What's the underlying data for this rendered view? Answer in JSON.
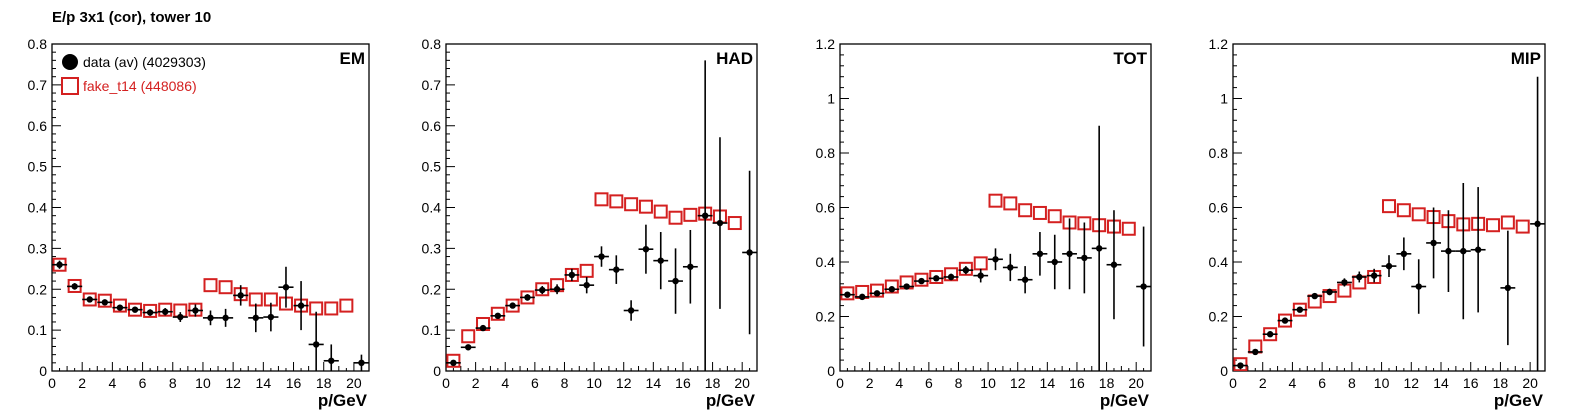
{
  "page": {
    "title": "E/p 3x1 (cor), tower 10"
  },
  "legend": {
    "entries": [
      {
        "label": "data (av) (4029303)",
        "color": "#000000",
        "marker": "filled-circle"
      },
      {
        "label": "fake_t14 (448086)",
        "color": "#d42020",
        "marker": "open-square"
      }
    ],
    "placement": "top-left of first panel"
  },
  "colors": {
    "data": "#000000",
    "fake": "#d42020",
    "axis": "#000000"
  },
  "chart_data": [
    {
      "type": "scatter",
      "panel_label": "EM",
      "xlabel": "p/GeV",
      "ylabel": "",
      "xlim": [
        0,
        21
      ],
      "ylim": [
        0,
        0.8
      ],
      "xticks": [
        0,
        2,
        4,
        6,
        8,
        10,
        12,
        14,
        16,
        18,
        20
      ],
      "yticks": [
        0,
        0.1,
        0.2,
        0.3,
        0.4,
        0.5,
        0.6,
        0.7,
        0.8
      ],
      "ytick_labels": [
        "0",
        "0.1",
        "0.2",
        "0.3",
        "0.4",
        "0.5",
        "0.6",
        "0.7",
        "0.8"
      ],
      "grid": false,
      "series": [
        {
          "name": "data (av) (4029303)",
          "marker": "filled-circle",
          "points": [
            [
              0.5,
              0.26,
              0.01
            ],
            [
              1.5,
              0.207,
              0.008
            ],
            [
              2.5,
              0.175,
              0.007
            ],
            [
              3.5,
              0.168,
              0.007
            ],
            [
              4.5,
              0.155,
              0.007
            ],
            [
              5.5,
              0.15,
              0.007
            ],
            [
              6.5,
              0.143,
              0.008
            ],
            [
              7.5,
              0.145,
              0.009
            ],
            [
              8.5,
              0.132,
              0.012
            ],
            [
              9.5,
              0.148,
              0.015
            ],
            [
              10.5,
              0.13,
              0.018
            ],
            [
              11.5,
              0.13,
              0.022
            ],
            [
              12.5,
              0.185,
              0.025
            ],
            [
              13.5,
              0.13,
              0.035
            ],
            [
              14.5,
              0.132,
              0.035
            ],
            [
              15.5,
              0.205,
              0.05
            ],
            [
              16.5,
              0.16,
              0.06
            ],
            [
              17.5,
              0.065,
              0.08
            ],
            [
              18.5,
              0.025,
              0.04
            ],
            [
              20.5,
              0.02,
              0.02
            ]
          ]
        },
        {
          "name": "fake_t14 (448086)",
          "marker": "open-square",
          "points": [
            [
              0.5,
              0.26
            ],
            [
              1.5,
              0.208
            ],
            [
              2.5,
              0.175
            ],
            [
              3.5,
              0.172
            ],
            [
              4.5,
              0.16
            ],
            [
              5.5,
              0.15
            ],
            [
              6.5,
              0.147
            ],
            [
              7.5,
              0.15
            ],
            [
              8.5,
              0.148
            ],
            [
              9.5,
              0.15
            ],
            [
              10.5,
              0.21
            ],
            [
              11.5,
              0.205
            ],
            [
              12.5,
              0.188
            ],
            [
              13.5,
              0.175
            ],
            [
              14.5,
              0.175
            ],
            [
              15.5,
              0.165
            ],
            [
              16.5,
              0.16
            ],
            [
              17.5,
              0.153
            ],
            [
              18.5,
              0.153
            ],
            [
              19.5,
              0.16
            ]
          ]
        }
      ]
    },
    {
      "type": "scatter",
      "panel_label": "HAD",
      "xlabel": "p/GeV",
      "ylabel": "",
      "xlim": [
        0,
        21
      ],
      "ylim": [
        0,
        0.8
      ],
      "xticks": [
        0,
        2,
        4,
        6,
        8,
        10,
        12,
        14,
        16,
        18,
        20
      ],
      "yticks": [
        0,
        0.1,
        0.2,
        0.3,
        0.4,
        0.5,
        0.6,
        0.7,
        0.8
      ],
      "ytick_labels": [
        "0",
        "0.1",
        "0.2",
        "0.3",
        "0.4",
        "0.5",
        "0.6",
        "0.7",
        "0.8"
      ],
      "grid": false,
      "series": [
        {
          "name": "data (av) (4029303)",
          "marker": "filled-circle",
          "points": [
            [
              0.5,
              0.02,
              0.005
            ],
            [
              1.5,
              0.058,
              0.005
            ],
            [
              2.5,
              0.105,
              0.006
            ],
            [
              3.5,
              0.135,
              0.007
            ],
            [
              4.5,
              0.16,
              0.007
            ],
            [
              5.5,
              0.18,
              0.008
            ],
            [
              6.5,
              0.198,
              0.01
            ],
            [
              7.5,
              0.2,
              0.012
            ],
            [
              8.5,
              0.235,
              0.015
            ],
            [
              9.5,
              0.21,
              0.02
            ],
            [
              10.5,
              0.28,
              0.025
            ],
            [
              11.5,
              0.248,
              0.035
            ],
            [
              12.5,
              0.148,
              0.025
            ],
            [
              13.5,
              0.298,
              0.06
            ],
            [
              14.5,
              0.27,
              0.07
            ],
            [
              15.5,
              0.22,
              0.08
            ],
            [
              16.5,
              0.255,
              0.09
            ],
            [
              17.5,
              0.38,
              0.38
            ],
            [
              18.5,
              0.362,
              0.21
            ],
            [
              20.5,
              0.29,
              0.2
            ]
          ]
        },
        {
          "name": "fake_t14 (448086)",
          "marker": "open-square",
          "points": [
            [
              0.5,
              0.025
            ],
            [
              1.5,
              0.085
            ],
            [
              2.5,
              0.115
            ],
            [
              3.5,
              0.14
            ],
            [
              4.5,
              0.16
            ],
            [
              5.5,
              0.18
            ],
            [
              6.5,
              0.2
            ],
            [
              7.5,
              0.21
            ],
            [
              8.5,
              0.235
            ],
            [
              9.5,
              0.245
            ],
            [
              10.5,
              0.42
            ],
            [
              11.5,
              0.415
            ],
            [
              12.5,
              0.408
            ],
            [
              13.5,
              0.402
            ],
            [
              14.5,
              0.39
            ],
            [
              15.5,
              0.375
            ],
            [
              16.5,
              0.382
            ],
            [
              17.5,
              0.385
            ],
            [
              18.5,
              0.378
            ],
            [
              19.5,
              0.362
            ]
          ]
        }
      ]
    },
    {
      "type": "scatter",
      "panel_label": "TOT",
      "xlabel": "p/GeV",
      "ylabel": "",
      "xlim": [
        0,
        21
      ],
      "ylim": [
        0,
        1.2
      ],
      "xticks": [
        0,
        2,
        4,
        6,
        8,
        10,
        12,
        14,
        16,
        18,
        20
      ],
      "yticks": [
        0,
        0.2,
        0.4,
        0.6,
        0.8,
        1.0,
        1.2
      ],
      "ytick_labels": [
        "0",
        "0.2",
        "0.4",
        "0.6",
        "0.8",
        "1",
        "1.2"
      ],
      "grid": false,
      "series": [
        {
          "name": "data (av) (4029303)",
          "marker": "filled-circle",
          "points": [
            [
              0.5,
              0.28,
              0.008
            ],
            [
              1.5,
              0.272,
              0.008
            ],
            [
              2.5,
              0.285,
              0.008
            ],
            [
              3.5,
              0.3,
              0.008
            ],
            [
              4.5,
              0.31,
              0.008
            ],
            [
              5.5,
              0.33,
              0.009
            ],
            [
              6.5,
              0.34,
              0.01
            ],
            [
              7.5,
              0.345,
              0.012
            ],
            [
              8.5,
              0.37,
              0.015
            ],
            [
              9.5,
              0.35,
              0.025
            ],
            [
              10.5,
              0.41,
              0.04
            ],
            [
              11.5,
              0.38,
              0.05
            ],
            [
              12.5,
              0.335,
              0.05
            ],
            [
              13.5,
              0.43,
              0.08
            ],
            [
              14.5,
              0.4,
              0.1
            ],
            [
              15.5,
              0.43,
              0.13
            ],
            [
              16.5,
              0.415,
              0.13
            ],
            [
              17.5,
              0.45,
              0.45
            ],
            [
              18.5,
              0.39,
              0.2
            ],
            [
              20.5,
              0.31,
              0.22
            ]
          ]
        },
        {
          "name": "fake_t14 (448086)",
          "marker": "open-square",
          "points": [
            [
              0.5,
              0.285
            ],
            [
              1.5,
              0.29
            ],
            [
              2.5,
              0.295
            ],
            [
              3.5,
              0.31
            ],
            [
              4.5,
              0.325
            ],
            [
              5.5,
              0.335
            ],
            [
              6.5,
              0.345
            ],
            [
              7.5,
              0.355
            ],
            [
              8.5,
              0.375
            ],
            [
              9.5,
              0.395
            ],
            [
              10.5,
              0.625
            ],
            [
              11.5,
              0.615
            ],
            [
              12.5,
              0.59
            ],
            [
              13.5,
              0.58
            ],
            [
              14.5,
              0.568
            ],
            [
              15.5,
              0.545
            ],
            [
              16.5,
              0.542
            ],
            [
              17.5,
              0.535
            ],
            [
              18.5,
              0.53
            ],
            [
              19.5,
              0.522
            ]
          ]
        }
      ]
    },
    {
      "type": "scatter",
      "panel_label": "MIP",
      "xlabel": "p/GeV",
      "ylabel": "",
      "xlim": [
        0,
        21
      ],
      "ylim": [
        0,
        1.2
      ],
      "xticks": [
        0,
        2,
        4,
        6,
        8,
        10,
        12,
        14,
        16,
        18,
        20
      ],
      "yticks": [
        0,
        0.2,
        0.4,
        0.6,
        0.8,
        1.0,
        1.2
      ],
      "ytick_labels": [
        "0",
        "0.2",
        "0.4",
        "0.6",
        "0.8",
        "1",
        "1.2"
      ],
      "grid": false,
      "series": [
        {
          "name": "data (av) (4029303)",
          "marker": "filled-circle",
          "points": [
            [
              0.5,
              0.02,
              0.006
            ],
            [
              1.5,
              0.07,
              0.006
            ],
            [
              2.5,
              0.135,
              0.008
            ],
            [
              3.5,
              0.185,
              0.01
            ],
            [
              4.5,
              0.225,
              0.01
            ],
            [
              5.5,
              0.275,
              0.01
            ],
            [
              6.5,
              0.29,
              0.012
            ],
            [
              7.5,
              0.325,
              0.015
            ],
            [
              8.5,
              0.345,
              0.02
            ],
            [
              9.5,
              0.35,
              0.025
            ],
            [
              10.5,
              0.385,
              0.04
            ],
            [
              11.5,
              0.43,
              0.06
            ],
            [
              12.5,
              0.31,
              0.1
            ],
            [
              13.5,
              0.47,
              0.13
            ],
            [
              14.5,
              0.44,
              0.15
            ],
            [
              15.5,
              0.44,
              0.25
            ],
            [
              16.5,
              0.445,
              0.23
            ],
            [
              18.5,
              0.305,
              0.21
            ],
            [
              20.5,
              0.54,
              0.54
            ]
          ]
        },
        {
          "name": "fake_t14 (448086)",
          "marker": "open-square",
          "points": [
            [
              0.5,
              0.025
            ],
            [
              1.5,
              0.09
            ],
            [
              2.5,
              0.135
            ],
            [
              3.5,
              0.185
            ],
            [
              4.5,
              0.225
            ],
            [
              5.5,
              0.255
            ],
            [
              6.5,
              0.275
            ],
            [
              7.5,
              0.295
            ],
            [
              8.5,
              0.325
            ],
            [
              9.5,
              0.345
            ],
            [
              10.5,
              0.605
            ],
            [
              11.5,
              0.59
            ],
            [
              12.5,
              0.575
            ],
            [
              13.5,
              0.565
            ],
            [
              14.5,
              0.55
            ],
            [
              15.5,
              0.538
            ],
            [
              16.5,
              0.54
            ],
            [
              17.5,
              0.535
            ],
            [
              18.5,
              0.545
            ],
            [
              19.5,
              0.53
            ]
          ]
        }
      ]
    }
  ]
}
